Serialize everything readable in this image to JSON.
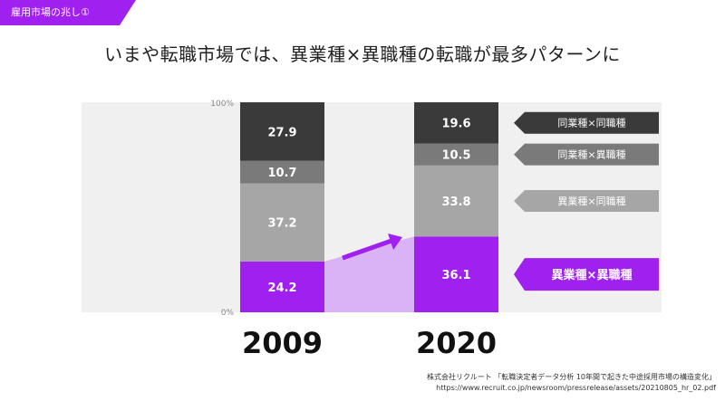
{
  "tag_label": "雇用市場の兆し①",
  "headline": "いまや転職市場では、異業種×異職種の転職が最多パターンに",
  "colors": {
    "accent": "#a020f0",
    "accent_light": "#d9b3f5",
    "dark": "#3a3a3a",
    "mid": "#7a7a7a",
    "light": "#a6a6a6",
    "panel": "#f0f0f0"
  },
  "chart_data": {
    "type": "bar",
    "stacked": true,
    "ylim": [
      0,
      100
    ],
    "y_ticks": [
      "100%",
      "0%"
    ],
    "categories": [
      "2009",
      "2020"
    ],
    "series": [
      {
        "name": "異業種×異職種",
        "values": [
          24.2,
          36.1
        ],
        "color": "#a020f0",
        "highlight": true
      },
      {
        "name": "異業種×同職種",
        "values": [
          37.2,
          33.8
        ],
        "color": "#a6a6a6"
      },
      {
        "name": "同業種×異職種",
        "values": [
          10.7,
          10.5
        ],
        "color": "#7a7a7a"
      },
      {
        "name": "同業種×同職種",
        "values": [
          27.9,
          19.6
        ],
        "color": "#3a3a3a"
      }
    ]
  },
  "source": {
    "line1": "株式会社リクルート 「転職決定者データ分析 10年間で起きた中途採用市場の構造変化」",
    "line2": "https://www.recruit.co.jp/newsroom/pressrelease/assets/20210805_hr_02.pdf"
  }
}
